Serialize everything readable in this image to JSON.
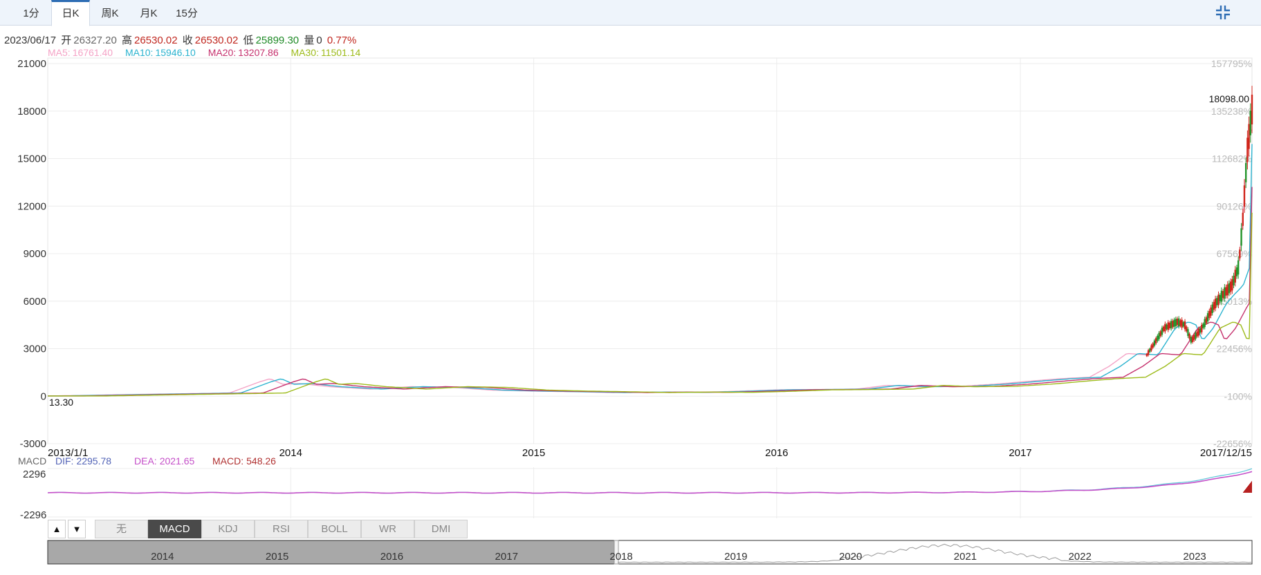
{
  "tabs": [
    {
      "label": "1分",
      "active": false
    },
    {
      "label": "日K",
      "active": true
    },
    {
      "label": "周K",
      "active": false
    },
    {
      "label": "月K",
      "active": false
    },
    {
      "label": "15分",
      "active": false
    }
  ],
  "icons": {
    "collapse": "collapse-fullscreen-icon",
    "up": "triangle-up-icon",
    "down": "triangle-down-icon"
  },
  "info": {
    "date": "2023/06/17",
    "open_label": "开",
    "open": "26327.20",
    "high_label": "高",
    "high": "26530.02",
    "close_label": "收",
    "close": "26530.02",
    "low_label": "低",
    "low": "25899.30",
    "vol_label": "量",
    "vol": "0",
    "change": "0.77%"
  },
  "ma": [
    {
      "label": "MA5:",
      "value": "16761.40",
      "color": "#f4a3c6"
    },
    {
      "label": "MA10:",
      "value": "15946.10",
      "color": "#2bb3cf"
    },
    {
      "label": "MA20:",
      "value": "13207.86",
      "color": "#c5306d"
    },
    {
      "label": "MA30:",
      "value": "11501.14",
      "color": "#9dbb1a"
    }
  ],
  "macd_legend": {
    "name": "MACD",
    "dif_label": "DIF:",
    "dif": "2295.78",
    "dea_label": "DEA:",
    "dea": "2021.65",
    "macd_label": "MACD:",
    "macd": "548.26"
  },
  "macd_axis": [
    "2296",
    "-2296"
  ],
  "indicators": [
    {
      "label": "无",
      "active": false
    },
    {
      "label": "MACD",
      "active": true
    },
    {
      "label": "KDJ",
      "active": false
    },
    {
      "label": "RSI",
      "active": false
    },
    {
      "label": "BOLL",
      "active": false
    },
    {
      "label": "WR",
      "active": false
    },
    {
      "label": "DMI",
      "active": false
    }
  ],
  "navigator": {
    "years": [
      "2014",
      "2015",
      "2016",
      "2017",
      "2018",
      "2019",
      "2020",
      "2021",
      "2022",
      "2023"
    ]
  },
  "chart_data": {
    "type": "line",
    "ylim": [
      -3000,
      21000
    ],
    "y_ticks": [
      21000,
      18000,
      15000,
      12000,
      9000,
      6000,
      3000,
      0,
      -3000
    ],
    "y_tick_labels": [
      "21000",
      "18000",
      "15000",
      "12000",
      "9000",
      "6000",
      "3000",
      "0",
      "-3000"
    ],
    "pct_labels": [
      "157795%",
      "135238%",
      "112682%",
      "90126%",
      "67569%",
      "45013%",
      "22456%",
      "-100%",
      "-22656%"
    ],
    "x_labels": [
      "2013/1/1",
      "2014",
      "2015",
      "2016",
      "2017",
      "2017/12/15"
    ],
    "x_label_dates": [
      "2013-01-01",
      "2014-01-01",
      "2015-01-01",
      "2016-01-01",
      "2017-01-01",
      "2017-12-15"
    ],
    "max_label": "18098.00",
    "min_label": "13.30",
    "series": [
      {
        "name": "MA5",
        "color": "#f4a3c6"
      },
      {
        "name": "MA10",
        "color": "#2bb3cf"
      },
      {
        "name": "MA20",
        "color": "#c5306d"
      },
      {
        "name": "MA30",
        "color": "#9dbb1a"
      }
    ],
    "dates": [
      "2013-01-01",
      "2013-06-01",
      "2013-10-01",
      "2013-11-15",
      "2013-12-01",
      "2013-12-20",
      "2014-01-15",
      "2014-03-01",
      "2014-05-01",
      "2014-07-01",
      "2014-09-01",
      "2014-11-01",
      "2015-01-01",
      "2015-03-01",
      "2015-05-01",
      "2015-07-01",
      "2015-09-01",
      "2015-11-01",
      "2016-01-01",
      "2016-03-01",
      "2016-05-01",
      "2016-06-15",
      "2016-08-01",
      "2016-10-01",
      "2016-12-01",
      "2017-01-15",
      "2017-03-01",
      "2017-04-15",
      "2017-05-15",
      "2017-06-10",
      "2017-07-10",
      "2017-08-05",
      "2017-08-25",
      "2017-09-05",
      "2017-09-15",
      "2017-10-01",
      "2017-10-20",
      "2017-11-01",
      "2017-11-15",
      "2017-11-25",
      "2017-12-01",
      "2017-12-08",
      "2017-12-15"
    ],
    "close": [
      13.3,
      120,
      200,
      900,
      1100,
      750,
      800,
      600,
      450,
      600,
      550,
      380,
      320,
      280,
      230,
      260,
      240,
      310,
      400,
      420,
      450,
      680,
      600,
      620,
      780,
      950,
      1100,
      1200,
      1900,
      2700,
      2600,
      4300,
      4700,
      4500,
      3500,
      4300,
      5800,
      6400,
      7000,
      8200,
      11000,
      15500,
      18098
    ]
  }
}
